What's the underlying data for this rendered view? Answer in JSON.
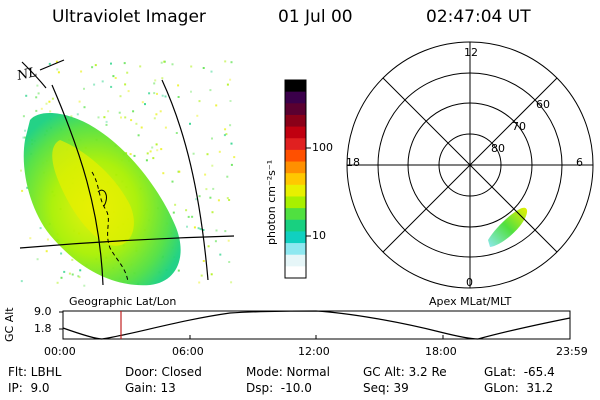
{
  "header": {
    "instrument": "Ultraviolet Imager",
    "date": "01 Jul 00",
    "time": "02:47:04 UT"
  },
  "left_panel": {
    "label": "Geographic Lat/Lon",
    "coastline_label": "NL"
  },
  "colorbar": {
    "axis_label": "photon cm⁻²s⁻¹",
    "ticks": [
      "100",
      "10"
    ],
    "scale": "log",
    "colors": [
      "#000000",
      "#3a004a",
      "#5a0030",
      "#8a0018",
      "#c00010",
      "#e02020",
      "#ff5000",
      "#ff9000",
      "#ffc800",
      "#e8f000",
      "#a8f000",
      "#50e040",
      "#18d080",
      "#10d0c0",
      "#8ee8f0",
      "#e6f6f8",
      "#ffffff"
    ]
  },
  "right_panel": {
    "label": "Apex MLat/MLT",
    "mlt_labels": {
      "top": "12",
      "right": "6",
      "bottom": "0",
      "left": "18"
    },
    "lat_labels": [
      "60",
      "70",
      "80"
    ]
  },
  "altitude_plot": {
    "ylabel": "GC Alt",
    "yticks": [
      "9.0",
      "1.8"
    ],
    "xticks": [
      "00:00",
      "06:00",
      "12:00",
      "18:00",
      "23:59"
    ],
    "marker_color": "#c02020"
  },
  "info": {
    "row1": {
      "flt": "Flt: LBHL",
      "door": "Door: Closed",
      "mode": "Mode: Normal",
      "gcalt": "GC Alt: 3.2 Re",
      "glat": "GLat:  -65.4"
    },
    "row2": {
      "ip": "IP:  9.0",
      "gain": "Gain: 13",
      "dsp": "Dsp:  -10.0",
      "seq": "Seq: 39",
      "glon": "GLon:  31.2"
    }
  }
}
